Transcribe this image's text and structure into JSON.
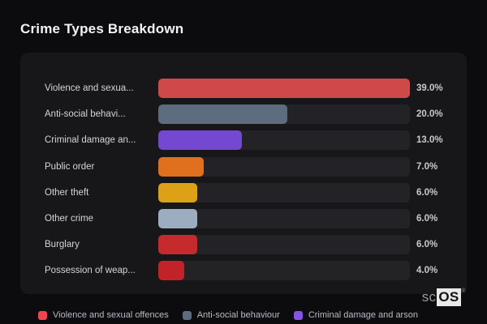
{
  "title": "Crime Types Breakdown",
  "chart_data": {
    "type": "bar",
    "orientation": "horizontal",
    "title": "Crime Types Breakdown",
    "value_format": "percent",
    "max_value": 39.0,
    "grid": false,
    "legend_position": "bottom",
    "bars": [
      {
        "label": "Violence and sexua...",
        "value": 39.0,
        "value_label": "39.0%",
        "color": "#d04949"
      },
      {
        "label": "Anti-social behavi...",
        "value": 20.0,
        "value_label": "20.0%",
        "color": "#5d6c7e"
      },
      {
        "label": "Criminal damage an...",
        "value": 13.0,
        "value_label": "13.0%",
        "color": "#7448d0"
      },
      {
        "label": "Public order",
        "value": 7.0,
        "value_label": "7.0%",
        "color": "#e0701d"
      },
      {
        "label": "Other theft",
        "value": 6.0,
        "value_label": "6.0%",
        "color": "#dda118"
      },
      {
        "label": "Other crime",
        "value": 6.0,
        "value_label": "6.0%",
        "color": "#9dadc0"
      },
      {
        "label": "Burglary",
        "value": 6.0,
        "value_label": "6.0%",
        "color": "#c52a2d"
      },
      {
        "label": "Possession of weap...",
        "value": 4.0,
        "value_label": "4.0%",
        "color": "#c22328"
      }
    ],
    "legend": [
      {
        "label": "Violence and sexual offences",
        "color": "#ee4650"
      },
      {
        "label": "Anti-social behaviour",
        "color": "#5d6c80"
      },
      {
        "label": "Criminal damage and arson",
        "color": "#8553e8"
      }
    ],
    "colors": {
      "page_bg": "#0c0c0f",
      "panel_bg": "#17171a",
      "track_bg": "#232327",
      "title_text": "#f2f3f6",
      "label_text": "#d2d5da",
      "value_text": "#c7c9ce",
      "legend_text": "#b6bbc4"
    }
  },
  "watermark": {
    "prefix": "sc",
    "boxed": "OS",
    "registered": "®"
  }
}
